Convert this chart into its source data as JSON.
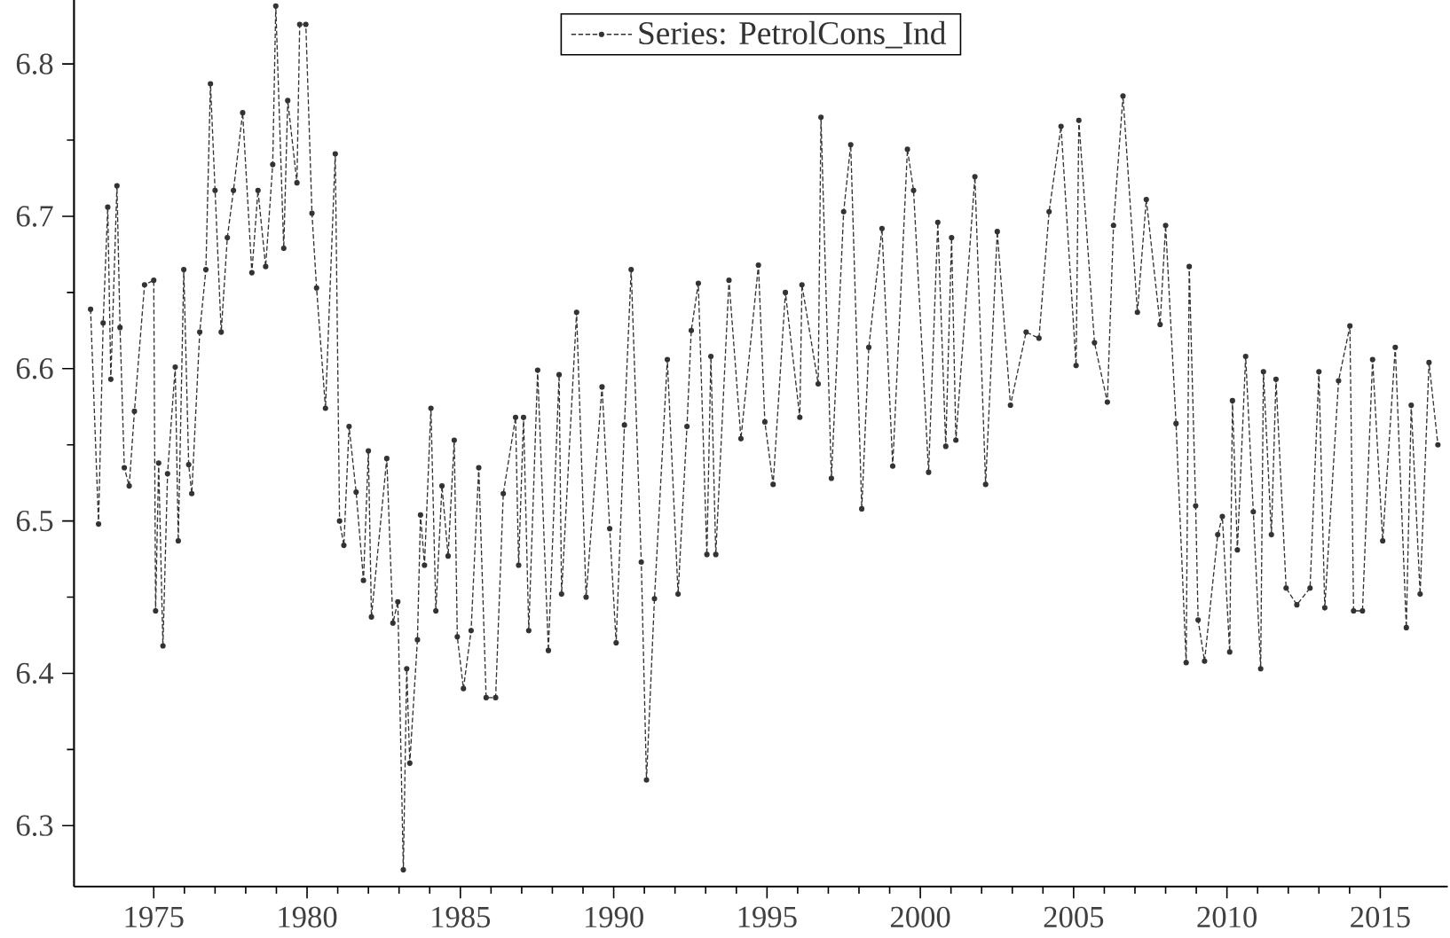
{
  "chart_data": {
    "type": "line",
    "xlim": [
      1972.4,
      2017.2
    ],
    "ylim": [
      6.26,
      6.842
    ],
    "xticks": [
      1975,
      1980,
      1985,
      1990,
      1995,
      2000,
      2005,
      2010,
      2015
    ],
    "yticks": [
      6.3,
      6.4,
      6.5,
      6.6,
      6.7,
      6.8
    ],
    "grid": false,
    "legend": "top",
    "marker": "circle",
    "line_style": "dashed",
    "series": [
      {
        "name": "Series: PetrolCons_Ind",
        "color": "#333333",
        "x": [
          1972.94,
          1973.2,
          1973.35,
          1973.5,
          1973.6,
          1973.8,
          1973.9,
          1974.04,
          1974.2,
          1974.37,
          1974.7,
          1975.0,
          1975.06,
          1975.16,
          1975.3,
          1975.45,
          1975.7,
          1975.8,
          1975.98,
          1976.14,
          1976.24,
          1976.5,
          1976.7,
          1976.85,
          1977.0,
          1977.2,
          1977.4,
          1977.6,
          1977.9,
          1978.2,
          1978.4,
          1978.65,
          1978.88,
          1978.98,
          1979.24,
          1979.37,
          1979.67,
          1979.76,
          1979.96,
          1980.16,
          1980.31,
          1980.6,
          1980.92,
          1981.06,
          1981.2,
          1981.37,
          1981.6,
          1981.84,
          1982.0,
          1982.1,
          1982.6,
          1982.8,
          1982.96,
          1983.14,
          1983.25,
          1983.35,
          1983.6,
          1983.7,
          1983.83,
          1984.04,
          1984.2,
          1984.4,
          1984.6,
          1984.8,
          1984.9,
          1985.1,
          1985.35,
          1985.6,
          1985.84,
          1986.15,
          1986.4,
          1986.8,
          1986.9,
          1987.06,
          1987.23,
          1987.52,
          1987.87,
          1988.22,
          1988.3,
          1988.79,
          1989.1,
          1989.62,
          1989.87,
          1990.08,
          1990.35,
          1990.57,
          1990.9,
          1991.07,
          1991.33,
          1991.75,
          1992.1,
          1992.39,
          1992.53,
          1992.76,
          1993.04,
          1993.17,
          1993.33,
          1993.76,
          1994.15,
          1994.72,
          1994.93,
          1995.2,
          1995.6,
          1996.07,
          1996.14,
          1996.67,
          1996.76,
          1997.1,
          1997.5,
          1997.73,
          1998.09,
          1998.32,
          1998.75,
          1999.1,
          1999.58,
          1999.78,
          2000.27,
          2000.57,
          2000.83,
          2001.02,
          2001.16,
          2001.78,
          2002.13,
          2002.51,
          2002.94,
          2003.45,
          2003.87,
          2004.2,
          2004.59,
          2005.08,
          2005.17,
          2005.68,
          2006.1,
          2006.3,
          2006.61,
          2007.08,
          2007.37,
          2007.82,
          2008.0,
          2008.34,
          2008.67,
          2008.77,
          2008.98,
          2009.06,
          2009.27,
          2009.7,
          2009.85,
          2010.09,
          2010.18,
          2010.34,
          2010.61,
          2010.86,
          2011.1,
          2011.19,
          2011.45,
          2011.6,
          2011.93,
          2012.28,
          2012.71,
          2013.0,
          2013.19,
          2013.64,
          2014.01,
          2014.13,
          2014.42,
          2014.75,
          2015.08,
          2015.49,
          2015.85,
          2016.01,
          2016.3,
          2016.59,
          2016.88
        ],
        "values": [
          6.639,
          6.498,
          6.63,
          6.706,
          6.593,
          6.72,
          6.627,
          6.535,
          6.523,
          6.572,
          6.655,
          6.658,
          6.441,
          6.538,
          6.418,
          6.531,
          6.601,
          6.487,
          6.665,
          6.537,
          6.518,
          6.624,
          6.665,
          6.787,
          6.717,
          6.624,
          6.686,
          6.717,
          6.768,
          6.663,
          6.717,
          6.667,
          6.734,
          6.838,
          6.679,
          6.776,
          6.722,
          6.826,
          6.826,
          6.702,
          6.653,
          6.574,
          6.741,
          6.5,
          6.484,
          6.562,
          6.519,
          6.461,
          6.546,
          6.437,
          6.541,
          6.433,
          6.447,
          6.271,
          6.403,
          6.341,
          6.422,
          6.504,
          6.471,
          6.574,
          6.441,
          6.523,
          6.477,
          6.553,
          6.424,
          6.39,
          6.428,
          6.535,
          6.384,
          6.384,
          6.518,
          6.568,
          6.471,
          6.568,
          6.428,
          6.599,
          6.415,
          6.596,
          6.452,
          6.637,
          6.45,
          6.588,
          6.495,
          6.42,
          6.563,
          6.665,
          6.473,
          6.33,
          6.449,
          6.606,
          6.452,
          6.562,
          6.625,
          6.656,
          6.478,
          6.608,
          6.478,
          6.658,
          6.554,
          6.668,
          6.565,
          6.524,
          6.65,
          6.568,
          6.655,
          6.59,
          6.765,
          6.528,
          6.703,
          6.747,
          6.508,
          6.614,
          6.692,
          6.536,
          6.744,
          6.717,
          6.532,
          6.696,
          6.549,
          6.686,
          6.553,
          6.726,
          6.524,
          6.69,
          6.576,
          6.624,
          6.62,
          6.703,
          6.759,
          6.602,
          6.763,
          6.617,
          6.578,
          6.694,
          6.779,
          6.637,
          6.711,
          6.629,
          6.694,
          6.564,
          6.407,
          6.667,
          6.51,
          6.435,
          6.408,
          6.491,
          6.503,
          6.414,
          6.579,
          6.481,
          6.608,
          6.506,
          6.403,
          6.598,
          6.491,
          6.593,
          6.456,
          6.445,
          6.456,
          6.598,
          6.443,
          6.592,
          6.628,
          6.441,
          6.441,
          6.606,
          6.487,
          6.614,
          6.43,
          6.576,
          6.452,
          6.604,
          6.55
        ]
      }
    ]
  }
}
